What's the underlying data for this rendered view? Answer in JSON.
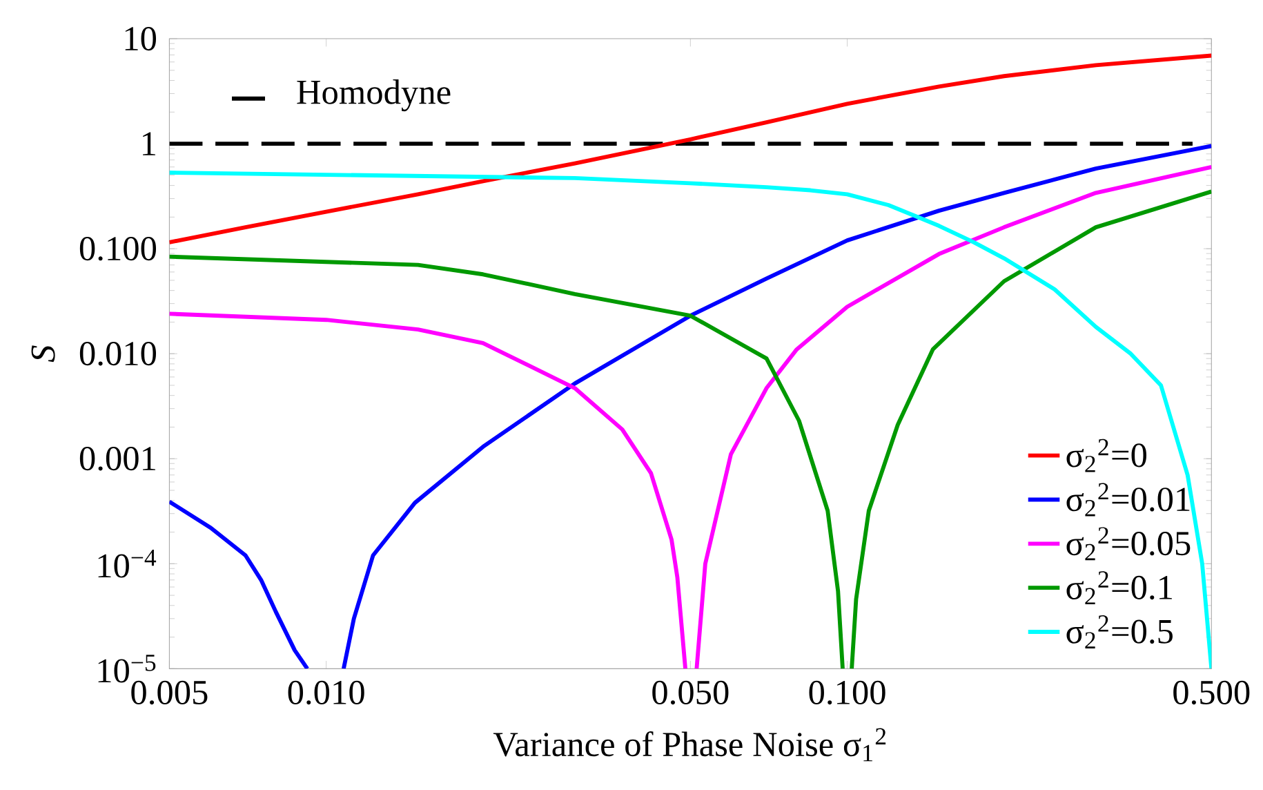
{
  "chart_data": {
    "type": "line",
    "xlabel": "Variance of Phase Noise σ$_{1}$$^{2}$",
    "ylabel": "S",
    "log": "xy",
    "legend": "bottom right",
    "line_style": "solid",
    "marker": "none",
    "xlim": [
      0.005,
      0.5
    ],
    "ylim": [
      1e-05,
      10
    ],
    "xticks": [
      {
        "value": 0.005,
        "label": "0.005"
      },
      {
        "value": 0.01,
        "label": "0.010"
      },
      {
        "value": 0.05,
        "label": "0.050"
      },
      {
        "value": 0.1,
        "label": "0.100"
      },
      {
        "value": 0.5,
        "label": "0.500"
      }
    ],
    "yticks": [
      {
        "value": 1e-05,
        "label": "10$^{−5}$"
      },
      {
        "value": 0.0001,
        "label": "10$^{−4}$"
      },
      {
        "value": 0.001,
        "label": "0.001"
      },
      {
        "value": 0.01,
        "label": "0.010"
      },
      {
        "value": 0.1,
        "label": "0.100"
      },
      1,
      10
    ],
    "series": [
      {
        "name": "Homodyne",
        "color": "#000000",
        "line_style": "dashed",
        "x": [
          0.005,
          0.46
        ],
        "values": [
          1,
          1
        ]
      },
      {
        "name": "σ$_{2}$$^{2}$=0",
        "color": "#ff0000",
        "x": [
          0.005,
          0.007,
          0.01,
          0.015,
          0.02,
          0.03,
          0.05,
          0.07,
          0.1,
          0.15,
          0.2,
          0.3,
          0.5
        ],
        "values": [
          0.115,
          0.16,
          0.225,
          0.33,
          0.44,
          0.65,
          1.1,
          1.6,
          2.4,
          3.5,
          4.4,
          5.6,
          6.9
        ]
      },
      {
        "name": "σ$_{2}$$^{2}$=0.01",
        "color": "#0000ff",
        "x": [
          0.005,
          0.006,
          0.007,
          0.0075,
          0.008,
          0.0087,
          0.0092,
          0.01,
          0.0108,
          0.0113,
          0.0123,
          0.0148,
          0.02,
          0.03,
          0.05,
          0.07,
          0.1,
          0.15,
          0.2,
          0.3,
          0.5
        ],
        "values": [
          0.00039,
          0.00022,
          0.00012,
          7e-05,
          3.5e-05,
          1.5e-05,
          1e-05,
          null,
          1e-05,
          3e-05,
          0.00012,
          0.00038,
          0.0013,
          0.0052,
          0.023,
          0.052,
          0.12,
          0.23,
          0.34,
          0.58,
          0.95
        ]
      },
      {
        "name": "σ$_{2}$$^{2}$=0.05",
        "color": "#ff00ff",
        "x": [
          0.005,
          0.01,
          0.015,
          0.02,
          0.03,
          0.037,
          0.042,
          0.046,
          0.0472,
          0.0489,
          0.05,
          0.0514,
          0.0534,
          0.0598,
          0.07,
          0.08,
          0.1,
          0.15,
          0.2,
          0.3,
          0.5
        ],
        "values": [
          0.024,
          0.021,
          0.017,
          0.0126,
          0.0047,
          0.0019,
          0.00073,
          0.00017,
          7.4e-05,
          1e-05,
          null,
          1e-05,
          0.0001,
          0.0011,
          0.0047,
          0.011,
          0.028,
          0.089,
          0.16,
          0.34,
          0.6
        ]
      },
      {
        "name": "σ$_{2}$$^{2}$=0.1",
        "color": "#009900",
        "x": [
          0.005,
          0.015,
          0.02,
          0.03,
          0.05,
          0.07,
          0.0808,
          0.0917,
          0.096,
          0.098,
          0.1,
          0.102,
          0.104,
          0.11,
          0.125,
          0.146,
          0.2,
          0.3,
          0.5
        ],
        "values": [
          0.084,
          0.07,
          0.057,
          0.037,
          0.023,
          0.009,
          0.0023,
          0.00032,
          5.5e-05,
          1e-05,
          null,
          1e-05,
          4.6e-05,
          0.00032,
          0.0021,
          0.011,
          0.049,
          0.16,
          0.35
        ]
      },
      {
        "name": "σ$_{2}$$^{2}$=0.5",
        "color": "#00ffff",
        "x": [
          0.005,
          0.03,
          0.05,
          0.07,
          0.085,
          0.1,
          0.12,
          0.135,
          0.15,
          0.175,
          0.2,
          0.25,
          0.3,
          0.35,
          0.4,
          0.45,
          0.48,
          0.5
        ],
        "values": [
          0.53,
          0.47,
          0.42,
          0.385,
          0.36,
          0.33,
          0.26,
          0.205,
          0.165,
          0.115,
          0.081,
          0.041,
          0.018,
          0.01,
          0.005,
          0.0007,
          0.0001,
          1e-05
        ]
      }
    ]
  }
}
